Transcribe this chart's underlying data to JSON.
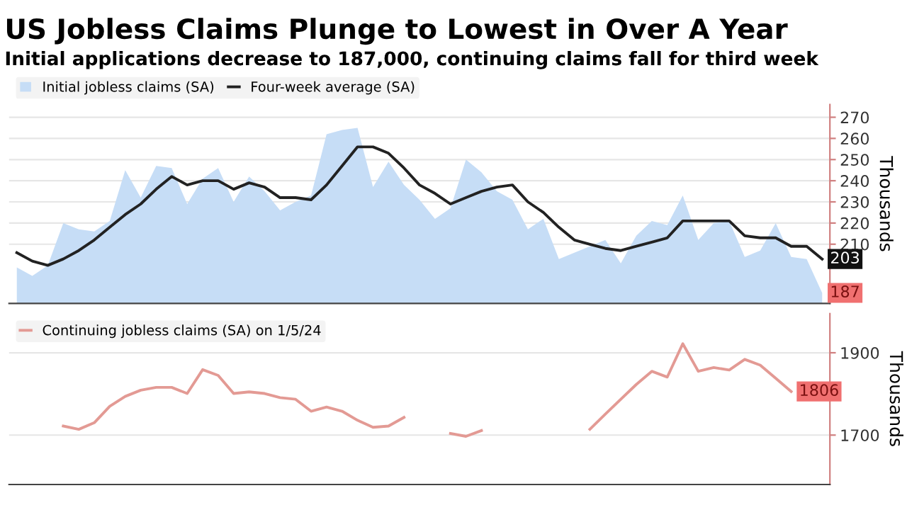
{
  "chart_data": [
    {
      "type": "area",
      "title": "US Jobless Claims Plunge to Lowest in Over A Year",
      "subtitle": "Initial applications decrease to 187,000, continuing claims fall for third week",
      "ylabel": "Thousands",
      "categories": [
        null,
        null,
        null,
        null,
        null,
        null,
        null,
        null,
        null,
        null,
        null,
        null,
        null,
        null,
        null,
        null,
        null,
        null,
        null,
        null,
        null,
        null,
        null,
        null,
        null,
        null,
        null,
        null,
        null,
        null,
        null,
        null,
        null,
        null,
        null,
        null,
        null,
        null,
        null,
        null,
        null,
        null,
        null,
        null,
        null,
        null,
        null,
        null,
        null,
        null,
        null,
        null,
        null
      ],
      "series": [
        {
          "name": "Initial jobless claims (SA)",
          "type": "area",
          "color": "#c6ddf6",
          "values": [
            199,
            195,
            200,
            220,
            217,
            216,
            221,
            245,
            232,
            247,
            246,
            229,
            241,
            246,
            230,
            242,
            235,
            226,
            230,
            233,
            262,
            264,
            265,
            237,
            249,
            238,
            231,
            222,
            227,
            250,
            244,
            235,
            231,
            217,
            222,
            203,
            206,
            209,
            212,
            201,
            214,
            221,
            219,
            233,
            212,
            220,
            221,
            204,
            207,
            220,
            204,
            203,
            187
          ],
          "value_labels": [
            null,
            null,
            null,
            null,
            null,
            null,
            null,
            null,
            null,
            null,
            null,
            null,
            null,
            null,
            null,
            null,
            null,
            null,
            null,
            null,
            null,
            null,
            null,
            null,
            null,
            null,
            null,
            null,
            null,
            null,
            null,
            null,
            null,
            null,
            null,
            null,
            null,
            null,
            null,
            null,
            null,
            null,
            null,
            null,
            null,
            null,
            null,
            null,
            null,
            null,
            null,
            null,
            "187"
          ]
        },
        {
          "name": "Four-week average (SA)",
          "type": "line",
          "color": "#222222",
          "values": [
            206,
            202,
            200,
            203,
            207,
            212,
            218,
            224,
            229,
            236,
            242,
            238,
            240,
            240,
            236,
            239,
            237,
            232,
            232,
            231,
            238,
            247,
            256,
            256,
            253,
            246,
            238,
            234,
            229,
            232,
            235,
            237,
            238,
            230,
            225,
            218,
            212,
            210,
            208,
            207,
            209,
            211,
            213,
            221,
            221,
            221,
            221,
            214,
            213,
            213,
            209,
            209,
            203
          ],
          "value_labels": [
            null,
            null,
            null,
            null,
            null,
            null,
            null,
            null,
            null,
            null,
            null,
            null,
            null,
            null,
            null,
            null,
            null,
            null,
            null,
            null,
            null,
            null,
            null,
            null,
            null,
            null,
            null,
            null,
            null,
            null,
            null,
            null,
            null,
            null,
            null,
            null,
            null,
            null,
            null,
            null,
            null,
            null,
            null,
            null,
            null,
            null,
            null,
            null,
            null,
            null,
            null,
            null,
            "203"
          ]
        }
      ],
      "ylim": [
        182,
        276
      ],
      "yticks": [
        210,
        220,
        230,
        240,
        250,
        260,
        270
      ],
      "tick_labels": "y",
      "grid": "y",
      "legend": "top left"
    },
    {
      "type": "line",
      "ylabel": "Thousands",
      "categories": [
        null,
        null,
        null,
        null,
        null,
        null,
        null,
        null,
        null,
        null,
        null,
        null,
        null,
        null,
        null,
        null,
        null,
        null,
        null,
        null,
        null,
        null,
        null,
        null,
        null,
        null,
        null,
        null,
        null,
        null,
        null,
        null,
        null,
        null,
        null,
        null,
        null,
        null,
        null,
        null,
        null,
        null,
        null,
        null,
        null,
        null,
        null,
        null,
        null,
        null,
        null,
        null,
        null
      ],
      "series": [
        {
          "name": "Continuing jobless claims (SA) on 1/5/24",
          "color": "#e39a94",
          "values": [
            null,
            null,
            null,
            1722,
            1714,
            1730,
            1770,
            1794,
            1809,
            1816,
            1816,
            1801,
            1859,
            1845,
            1801,
            1805,
            1801,
            1791,
            1787,
            1758,
            1768,
            1758,
            1736,
            1719,
            1722,
            1743,
            null,
            null,
            1704,
            1697,
            1711,
            null,
            null,
            null,
            null,
            null,
            null,
            1714,
            1751,
            1787,
            1823,
            1855,
            1841,
            1922,
            1855,
            1864,
            1858,
            1884,
            1870,
            1838,
            1806,
            null,
            null
          ],
          "value_labels": [
            null,
            null,
            null,
            null,
            null,
            null,
            null,
            null,
            null,
            null,
            null,
            null,
            null,
            null,
            null,
            null,
            null,
            null,
            null,
            null,
            null,
            null,
            null,
            null,
            null,
            null,
            null,
            null,
            null,
            null,
            null,
            null,
            null,
            null,
            null,
            null,
            null,
            null,
            null,
            null,
            null,
            null,
            null,
            null,
            null,
            null,
            null,
            null,
            null,
            null,
            "1806",
            null,
            null
          ]
        }
      ],
      "ylim": [
        1580,
        1995
      ],
      "yticks": [
        1700,
        1900
      ],
      "tick_labels": "y",
      "grid": "y",
      "legend": "top left"
    }
  ]
}
